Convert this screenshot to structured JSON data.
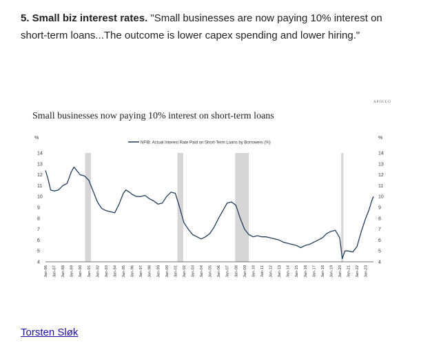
{
  "intro": {
    "heading": "5. Small biz interest rates.",
    "quote": " \"Small businesses are now paying 10% interest on short-term loans...The outcome is lower capex spending and lower hiring.\""
  },
  "brand": "APOLLO",
  "author_link": "Torsten Sløk",
  "chart_data": {
    "type": "line",
    "title": "Small businesses now paying 10% interest on short-term loans",
    "ylabel_left": "%",
    "ylabel_right": "%",
    "ylim": [
      4,
      14
    ],
    "yticks": [
      4,
      5,
      6,
      7,
      8,
      9,
      10,
      11,
      12,
      13,
      14
    ],
    "x_tick_labels": [
      "Jan-86",
      "Jan-87",
      "Jan-88",
      "Jan-89",
      "Jan-90",
      "Jan-91",
      "Jan-92",
      "Jan-93",
      "Jan-94",
      "Jan-95",
      "Jan-96",
      "Jan-97",
      "Jan-98",
      "Jan-99",
      "Jan-00",
      "Jan-01",
      "Jan-02",
      "Jan-03",
      "Jan-04",
      "Jan-05",
      "Jan-06",
      "Jan-07",
      "Jan-08",
      "Jan-09",
      "Jan-10",
      "Jan-11",
      "Jan-12",
      "Jan-13",
      "Jan-14",
      "Jan-15",
      "Jan-16",
      "Jan-17",
      "Jan-18",
      "Jan-19",
      "Jan-20",
      "Jan-21",
      "Jan-22",
      "Jan-23"
    ],
    "x_range": [
      1986.0,
      2023.9
    ],
    "recessions": [
      [
        1990.58,
        1991.25
      ],
      [
        2001.25,
        2001.92
      ],
      [
        2007.92,
        2009.5
      ],
      [
        2020.17,
        2020.42
      ]
    ],
    "legend": "top-center",
    "series": [
      {
        "name": "NFIB: Actual Interest Rate Paid on Short-Term Loans by Borrowers (%)",
        "color": "#1f3c5a",
        "points": [
          [
            1986.0,
            12.4
          ],
          [
            1986.3,
            11.6
          ],
          [
            1986.6,
            10.6
          ],
          [
            1987.0,
            10.5
          ],
          [
            1987.5,
            10.6
          ],
          [
            1988.0,
            11.0
          ],
          [
            1988.5,
            11.2
          ],
          [
            1989.0,
            12.3
          ],
          [
            1989.3,
            12.7
          ],
          [
            1989.7,
            12.3
          ],
          [
            1990.0,
            12.0
          ],
          [
            1990.5,
            11.9
          ],
          [
            1991.0,
            11.5
          ],
          [
            1991.5,
            10.5
          ],
          [
            1992.0,
            9.5
          ],
          [
            1992.5,
            8.9
          ],
          [
            1993.0,
            8.7
          ],
          [
            1993.5,
            8.6
          ],
          [
            1994.0,
            8.5
          ],
          [
            1994.5,
            9.3
          ],
          [
            1995.0,
            10.3
          ],
          [
            1995.3,
            10.6
          ],
          [
            1995.7,
            10.4
          ],
          [
            1996.0,
            10.2
          ],
          [
            1996.5,
            10.0
          ],
          [
            1997.0,
            10.0
          ],
          [
            1997.5,
            10.1
          ],
          [
            1998.0,
            9.8
          ],
          [
            1998.5,
            9.6
          ],
          [
            1999.0,
            9.3
          ],
          [
            1999.5,
            9.4
          ],
          [
            2000.0,
            10.0
          ],
          [
            2000.5,
            10.4
          ],
          [
            2001.0,
            10.3
          ],
          [
            2001.5,
            9.0
          ],
          [
            2002.0,
            7.6
          ],
          [
            2002.5,
            7.0
          ],
          [
            2003.0,
            6.5
          ],
          [
            2003.5,
            6.3
          ],
          [
            2004.0,
            6.1
          ],
          [
            2004.5,
            6.3
          ],
          [
            2005.0,
            6.6
          ],
          [
            2005.5,
            7.2
          ],
          [
            2006.0,
            8.0
          ],
          [
            2006.5,
            8.7
          ],
          [
            2007.0,
            9.4
          ],
          [
            2007.5,
            9.5
          ],
          [
            2008.0,
            9.2
          ],
          [
            2008.5,
            8.0
          ],
          [
            2009.0,
            7.0
          ],
          [
            2009.5,
            6.5
          ],
          [
            2010.0,
            6.3
          ],
          [
            2010.5,
            6.4
          ],
          [
            2011.0,
            6.3
          ],
          [
            2011.5,
            6.3
          ],
          [
            2012.0,
            6.2
          ],
          [
            2012.5,
            6.1
          ],
          [
            2013.0,
            6.0
          ],
          [
            2013.5,
            5.8
          ],
          [
            2014.0,
            5.7
          ],
          [
            2014.5,
            5.6
          ],
          [
            2015.0,
            5.5
          ],
          [
            2015.5,
            5.3
          ],
          [
            2016.0,
            5.5
          ],
          [
            2016.5,
            5.6
          ],
          [
            2017.0,
            5.8
          ],
          [
            2017.5,
            6.0
          ],
          [
            2018.0,
            6.2
          ],
          [
            2018.5,
            6.6
          ],
          [
            2019.0,
            6.8
          ],
          [
            2019.5,
            6.9
          ],
          [
            2020.0,
            6.2
          ],
          [
            2020.3,
            4.3
          ],
          [
            2020.6,
            5.0
          ],
          [
            2021.0,
            5.0
          ],
          [
            2021.5,
            4.9
          ],
          [
            2022.0,
            5.4
          ],
          [
            2022.5,
            6.8
          ],
          [
            2023.0,
            8.0
          ],
          [
            2023.4,
            8.8
          ],
          [
            2023.7,
            9.6
          ],
          [
            2023.9,
            10.0
          ]
        ]
      }
    ]
  }
}
